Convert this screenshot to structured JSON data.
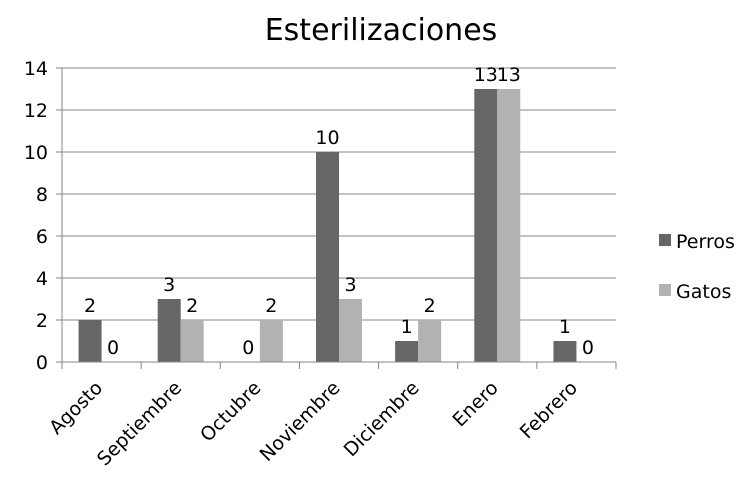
{
  "chart_data": {
    "type": "bar",
    "title": "Esterilizaciones",
    "categories": [
      "Agosto",
      "Septiembre",
      "Octubre",
      "Noviembre",
      "Diciembre",
      "Enero",
      "Febrero"
    ],
    "series": [
      {
        "name": "Perros",
        "values": [
          2,
          3,
          0,
          10,
          1,
          13,
          1
        ],
        "color": "#666666"
      },
      {
        "name": "Gatos",
        "values": [
          0,
          2,
          2,
          3,
          2,
          13,
          0
        ],
        "color": "#b2b2b2"
      }
    ],
    "ylim": [
      0,
      14
    ],
    "yticks": [
      0,
      2,
      4,
      6,
      8,
      10,
      12,
      14
    ],
    "grid": true,
    "legend": "right",
    "xlabel": "",
    "ylabel": ""
  }
}
